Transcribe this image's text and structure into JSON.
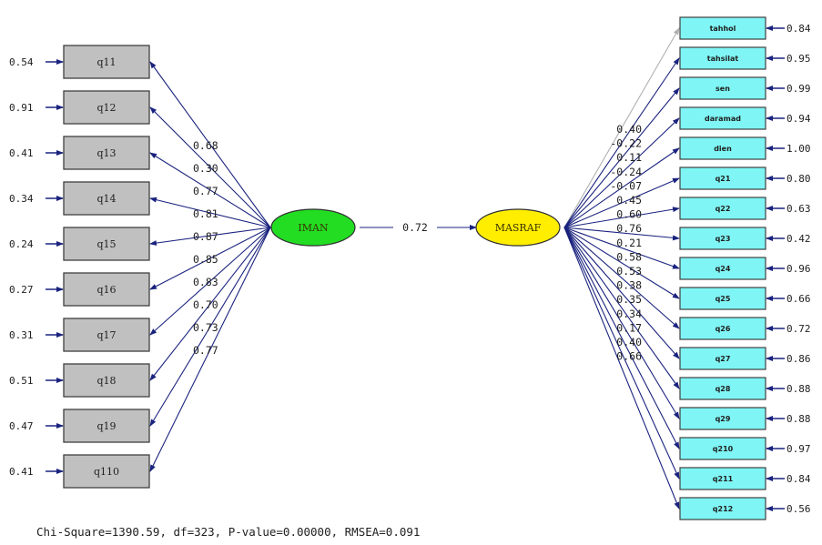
{
  "latent": {
    "left": {
      "name": "IMAN",
      "color": "#22dd22"
    },
    "right": {
      "name": "MASRAF",
      "color": "#ffee00"
    },
    "structural_coef": "0.72"
  },
  "left_indicators": [
    {
      "name": "q11",
      "error": "0.54",
      "loading": "0.68"
    },
    {
      "name": "q12",
      "error": "0.91",
      "loading": "0.30"
    },
    {
      "name": "q13",
      "error": "0.41",
      "loading": "0.77"
    },
    {
      "name": "q14",
      "error": "0.34",
      "loading": "0.81"
    },
    {
      "name": "q15",
      "error": "0.24",
      "loading": "0.87"
    },
    {
      "name": "q16",
      "error": "0.27",
      "loading": "0.85"
    },
    {
      "name": "q17",
      "error": "0.31",
      "loading": "0.83"
    },
    {
      "name": "q18",
      "error": "0.51",
      "loading": "0.70"
    },
    {
      "name": "q19",
      "error": "0.47",
      "loading": "0.73"
    },
    {
      "name": "q110",
      "error": "0.41",
      "loading": "0.77"
    }
  ],
  "right_indicators": [
    {
      "name": "tahhol",
      "error": "0.84",
      "loading": "0.40"
    },
    {
      "name": "tahsilat",
      "error": "0.95",
      "loading": "-0.22"
    },
    {
      "name": "sen",
      "error": "0.99",
      "loading": "0.11"
    },
    {
      "name": "daramad",
      "error": "0.94",
      "loading": "-0.24"
    },
    {
      "name": "dien",
      "error": "1.00",
      "loading": "-0.07"
    },
    {
      "name": "q21",
      "error": "0.80",
      "loading": "0.45"
    },
    {
      "name": "q22",
      "error": "0.63",
      "loading": "0.60"
    },
    {
      "name": "q23",
      "error": "0.42",
      "loading": "0.76"
    },
    {
      "name": "q24",
      "error": "0.96",
      "loading": "0.21"
    },
    {
      "name": "q25",
      "error": "0.66",
      "loading": "0.58"
    },
    {
      "name": "q26",
      "error": "0.72",
      "loading": "0.53"
    },
    {
      "name": "q27",
      "error": "0.86",
      "loading": "0.38"
    },
    {
      "name": "q28",
      "error": "0.88",
      "loading": "0.35"
    },
    {
      "name": "q29",
      "error": "0.88",
      "loading": "0.34"
    },
    {
      "name": "q210",
      "error": "0.97",
      "loading": "0.17"
    },
    {
      "name": "q211",
      "error": "0.84",
      "loading": "0.40"
    },
    {
      "name": "q212",
      "error": "0.56",
      "loading": "0.66"
    }
  ],
  "fit_stats": "Chi-Square=1390.59, df=323, P-value=0.00000, RMSEA=0.091"
}
